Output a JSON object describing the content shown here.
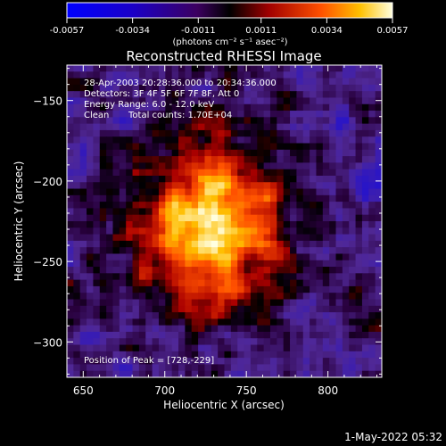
{
  "chart_data": {
    "type": "heatmap",
    "title": "Reconstructed RHESSI Image",
    "xlabel": "Heliocentric X (arcsec)",
    "ylabel": "Heliocentric Y (arcsec)",
    "xlim": [
      640,
      833
    ],
    "ylim": [
      -322,
      -128
    ],
    "x_ticks": [
      650,
      700,
      750,
      800
    ],
    "y_ticks": [
      -150,
      -200,
      -250,
      -300
    ],
    "colorbar": {
      "range": [
        -0.0057,
        0.0057
      ],
      "tick_values": [
        -0.0057,
        -0.0034,
        -0.0011,
        0.0011,
        0.0034,
        0.0057
      ],
      "tick_labels": [
        "-0.0057",
        "-0.0034",
        "-0.0011",
        "0.0011",
        "0.0034",
        "0.0057"
      ],
      "unit_label": "(photons cm⁻² s⁻¹ asec⁻²)"
    },
    "annotations": {
      "time_range": "28-Apr-2003 20:28:36.000 to 20:34:36.000",
      "detectors": "Detectors: 3F 4F 5F 6F 7F 8F, Att 0",
      "energy": "Energy Range: 6.0 - 12.0 keV",
      "algorithm": "Clean",
      "counts": "Total counts: 1.70E+04",
      "peak": "Position of Peak = [728,-229]"
    },
    "peak": {
      "x": 728,
      "y": -229
    },
    "footer_date": "1-May-2022 05:32"
  }
}
